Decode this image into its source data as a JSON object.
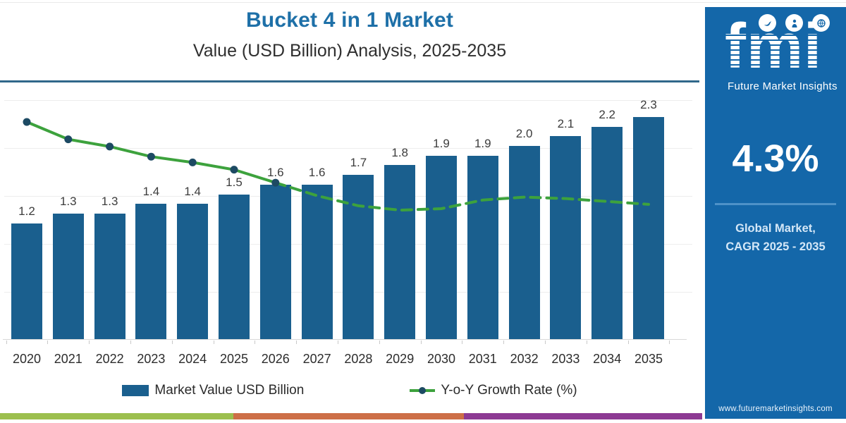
{
  "header": {
    "title": "Bucket 4 in 1 Market",
    "subtitle": "Value (USD Billion) Analysis, 2025-2035",
    "title_color": "#1e70a8",
    "divider_color": "#30688a"
  },
  "chart_data": {
    "type": "bar",
    "categories": [
      "2020",
      "2021",
      "2022",
      "2023",
      "2024",
      "2025",
      "2026",
      "2027",
      "2028",
      "2029",
      "2030",
      "2031",
      "2032",
      "2033",
      "2034",
      "2035"
    ],
    "series": [
      {
        "name": "Market Value USD Billion",
        "type": "bar",
        "color": "#1a5f8e",
        "values": [
          1.2,
          1.3,
          1.3,
          1.4,
          1.4,
          1.5,
          1.6,
          1.6,
          1.7,
          1.8,
          1.9,
          1.9,
          2.0,
          2.1,
          2.2,
          2.3
        ],
        "labels": [
          "1.2",
          "1.3",
          "1.3",
          "1.4",
          "1.4",
          "1.5",
          "1.6",
          "1.6",
          "1.7",
          "1.8",
          "1.9",
          "1.9",
          "2.0",
          "2.1",
          "2.2",
          "2.3"
        ]
      },
      {
        "name": "Y-o-Y Growth Rate (%)",
        "type": "line",
        "color": "#3da23d",
        "marker_color": "#1d4a63",
        "values": [
          7.4,
          6.2,
          5.7,
          5.0,
          4.6,
          4.1,
          3.2,
          2.3,
          1.6,
          1.3,
          1.4,
          2.0,
          2.2,
          2.1,
          1.9,
          1.7
        ],
        "note": "growth axis unlabeled; values estimated from line position",
        "solid_until_index": 6,
        "dashed_after": "2026"
      }
    ],
    "ylabel": "",
    "xlabel": "",
    "ylim": [
      0,
      2.7
    ],
    "grid": true,
    "value_labels_shown": true,
    "legend_position": "bottom"
  },
  "legend": {
    "items": [
      {
        "label": "Market Value USD Billion",
        "swatch": "bar",
        "color": "#1a5f8e"
      },
      {
        "label": "Y-o-Y Growth Rate (%)",
        "swatch": "line",
        "color": "#3da23d",
        "marker_color": "#1d4a63"
      }
    ]
  },
  "footer_stripe": {
    "colors": [
      "#9cbf4e",
      "#cd6f47",
      "#8d3a93"
    ]
  },
  "sidebar": {
    "bg_color": "#1467a9",
    "logo_text": "fmi",
    "logo_subtext": "Future Market Insights",
    "badge_icons": [
      "dove-icon",
      "person-icon",
      "globe-icon"
    ],
    "cagr_value": "4.3%",
    "caption_line1": "Global Market,",
    "caption_line2": "CAGR 2025 - 2035",
    "website": "www.futuremarketinsights.com"
  }
}
